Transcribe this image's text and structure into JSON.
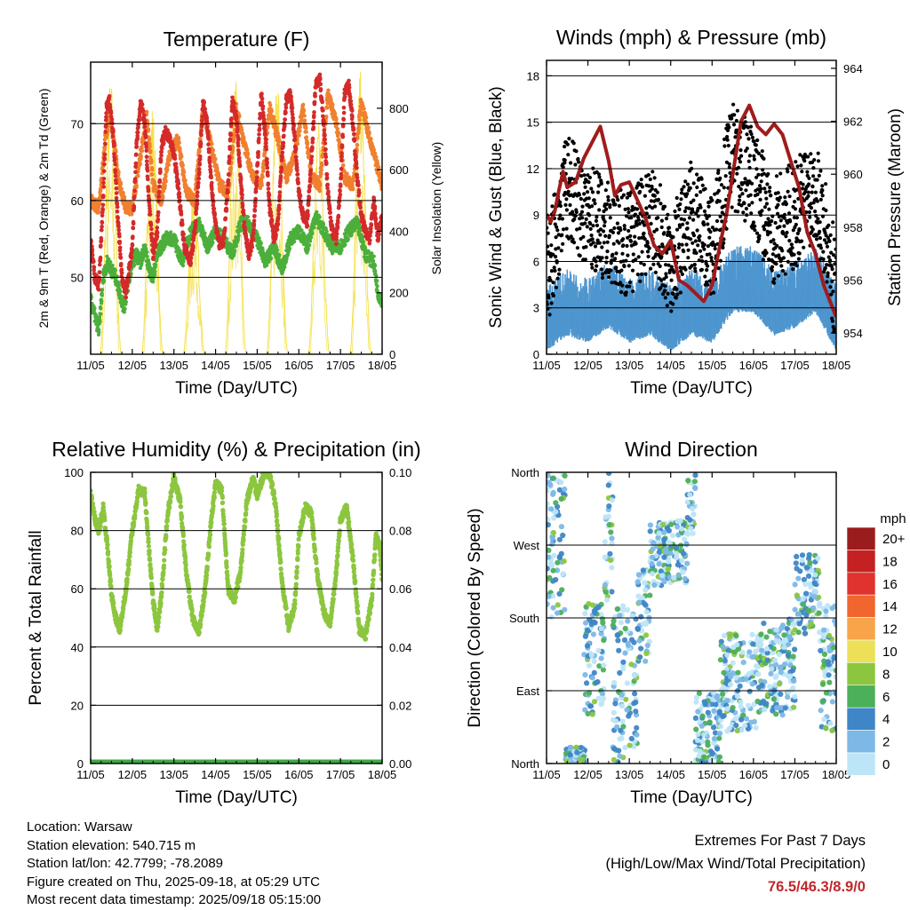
{
  "xticks": [
    "11/05",
    "12/05",
    "13/05",
    "14/05",
    "15/05",
    "16/05",
    "17/05",
    "18/05"
  ],
  "xlabel": "Time (Day/UTC)",
  "panels": {
    "temperature": {
      "title": "Temperature (F)",
      "ylabel_left": "2m & 9m T (Red, Orange) & 2m Td (Green)",
      "ylabel_right": "Solar Insolation (Yellow)",
      "yticks_left": [
        "50",
        "60",
        "70"
      ],
      "yticks_right": [
        "0",
        "200",
        "400",
        "600",
        "800"
      ]
    },
    "winds": {
      "title": "Winds (mph) & Pressure (mb)",
      "ylabel_left": "Sonic Wind & Gust (Blue, Black)",
      "ylabel_right": "Station Pressure (Maroon)",
      "yticks_left": [
        "0",
        "3",
        "6",
        "9",
        "12",
        "15",
        "18"
      ],
      "yticks_right": [
        "954",
        "956",
        "958",
        "960",
        "962",
        "964"
      ]
    },
    "humidity": {
      "title": "Relative Humidity (%) & Precipitation (in)",
      "ylabel_left": "Percent & Total Rainfall",
      "yticks_left": [
        "0",
        "20",
        "40",
        "60",
        "80",
        "100"
      ],
      "yticks_right": [
        "0.00",
        "0.02",
        "0.04",
        "0.06",
        "0.08",
        "0.10"
      ]
    },
    "direction": {
      "title": "Wind Direction",
      "ylabel_left": "Direction (Colored By Speed)",
      "yticks_left": [
        "North",
        "East",
        "South",
        "West",
        "North"
      ],
      "legend_title": "mph",
      "legend_labels": [
        "20+",
        "18",
        "16",
        "14",
        "12",
        "10",
        "8",
        "6",
        "4",
        "2",
        "0"
      ]
    }
  },
  "chart_data": [
    {
      "type": "line",
      "title": "Temperature (F)",
      "xlabel": "Time (Day/UTC)",
      "ylabel": "2m & 9m T (Red, Orange) & 2m Td (Green)",
      "y2label": "Solar Insolation (Yellow)",
      "x_range_days": [
        0,
        7
      ],
      "ylim": [
        40,
        78
      ],
      "y2lim": [
        0,
        950
      ],
      "colors": {
        "t2m": "#d42a2a",
        "t9m": "#f08030",
        "td2m": "#4caf3c",
        "solar": "#f5e04a"
      },
      "series": [
        {
          "key": "t2m",
          "axis": "left",
          "x": [
            0,
            0.1,
            0.2,
            0.3,
            0.38,
            0.45,
            0.55,
            0.65,
            0.75,
            0.85,
            1,
            1.1,
            1.2,
            1.3,
            1.4,
            1.5,
            1.6,
            1.7,
            1.8,
            1.9,
            2,
            2.1,
            2.25,
            2.4,
            2.5,
            2.6,
            2.7,
            2.8,
            2.9,
            3,
            3.1,
            3.2,
            3.3,
            3.4,
            3.5,
            3.6,
            3.7,
            3.8,
            3.9,
            4,
            4.1,
            4.2,
            4.3,
            4.4,
            4.5,
            4.6,
            4.7,
            4.8,
            4.9,
            5,
            5.1,
            5.2,
            5.3,
            5.4,
            5.5,
            5.6,
            5.7,
            5.8,
            5.9,
            6,
            6.1,
            6.2,
            6.3,
            6.4,
            6.5,
            6.6,
            6.7,
            6.8,
            6.9,
            7
          ],
          "y": [
            55,
            50,
            49,
            60,
            72,
            73,
            68,
            58,
            50,
            48,
            54,
            67,
            73,
            70,
            60,
            53,
            56,
            67,
            69,
            68,
            66,
            62,
            54,
            52,
            56,
            63,
            73,
            70,
            62,
            57,
            54,
            55,
            62,
            73,
            71,
            63,
            56,
            53,
            55,
            64,
            74,
            68,
            59,
            55,
            57,
            66,
            73,
            74,
            68,
            61,
            58,
            57,
            65,
            75,
            76,
            70,
            61,
            56,
            55,
            62,
            74,
            75,
            70,
            63,
            58,
            56,
            55,
            60,
            55,
            58
          ]
        },
        {
          "key": "t9m",
          "axis": "left",
          "x": [
            0,
            0.2,
            0.35,
            0.45,
            0.55,
            0.7,
            0.85,
            1,
            1.2,
            1.35,
            1.5,
            1.7,
            1.9,
            2.1,
            2.3,
            2.5,
            2.7,
            2.9,
            3.1,
            3.3,
            3.5,
            3.7,
            3.9,
            4.1,
            4.3,
            4.5,
            4.7,
            4.9,
            5.1,
            5.3,
            5.5,
            5.7,
            5.9,
            6.1,
            6.3,
            6.5,
            6.7,
            6.9,
            7
          ],
          "y": [
            60,
            59,
            68,
            71,
            68,
            62,
            59,
            59,
            66,
            71,
            62,
            60,
            66,
            68,
            61,
            60,
            72,
            67,
            62,
            61,
            72,
            67,
            63,
            62,
            72,
            68,
            63,
            66,
            72,
            63,
            62,
            74,
            70,
            63,
            62,
            73,
            68,
            64,
            62
          ]
        },
        {
          "key": "td2m",
          "axis": "left",
          "x": [
            0,
            0.1,
            0.2,
            0.3,
            0.4,
            0.5,
            0.6,
            0.7,
            0.8,
            0.9,
            1,
            1.1,
            1.2,
            1.3,
            1.4,
            1.5,
            1.6,
            1.8,
            2,
            2.2,
            2.4,
            2.6,
            2.8,
            3,
            3.2,
            3.4,
            3.6,
            3.8,
            4,
            4.2,
            4.4,
            4.6,
            4.8,
            5,
            5.2,
            5.4,
            5.6,
            5.8,
            6,
            6.2,
            6.4,
            6.6,
            6.8,
            6.9,
            7
          ],
          "y": [
            47,
            45,
            43,
            50,
            52,
            51,
            50,
            48,
            46,
            49,
            52,
            53,
            52,
            54,
            51,
            50,
            53,
            55,
            55,
            52,
            56,
            57,
            54,
            56,
            55,
            53,
            57,
            57,
            55,
            52,
            54,
            51,
            55,
            56,
            54,
            58,
            56,
            54,
            54,
            56,
            57,
            53,
            52,
            48,
            47
          ]
        },
        {
          "key": "solar",
          "axis": "right",
          "peaks_x": [
            0.48,
            1.48,
            2.48,
            3.48,
            4.48,
            5.48,
            6.48
          ],
          "peaks_y": [
            900,
            820,
            580,
            900,
            890,
            760,
            920
          ]
        }
      ]
    },
    {
      "type": "line",
      "title": "Winds (mph) & Pressure (mb)",
      "xlabel": "Time (Day/UTC)",
      "ylabel": "Sonic Wind & Gust (Blue, Black)",
      "y2label": "Station Pressure (Maroon)",
      "x_range_days": [
        0,
        7
      ],
      "ylim": [
        0,
        19
      ],
      "y2lim": [
        953.2,
        964.3
      ],
      "colors": {
        "wind": "#4f96cf",
        "gust": "#000000",
        "pressure": "#a01c1c"
      },
      "series": [
        {
          "key": "pressure",
          "axis": "right",
          "x": [
            0,
            0.1,
            0.2,
            0.3,
            0.4,
            0.5,
            0.7,
            0.9,
            1.1,
            1.3,
            1.5,
            1.65,
            1.8,
            2,
            2.2,
            2.4,
            2.6,
            2.8,
            3,
            3.2,
            3.4,
            3.6,
            3.8,
            4,
            4.2,
            4.35,
            4.5,
            4.7,
            4.9,
            5.1,
            5.3,
            5.5,
            5.7,
            5.9,
            6.1,
            6.3,
            6.5,
            6.7,
            6.9,
            7
          ],
          "y": [
            958.5,
            958.2,
            958.6,
            959.4,
            960.1,
            959.5,
            959.7,
            960.6,
            961.2,
            961.8,
            960.5,
            959.2,
            959.6,
            959.7,
            959.0,
            958.3,
            957.3,
            957.0,
            957.5,
            956.0,
            955.8,
            955.5,
            955.2,
            955.8,
            957.4,
            958.5,
            960.0,
            962.0,
            962.6,
            961.8,
            961.5,
            961.9,
            961.5,
            960.5,
            959.5,
            957.8,
            957.0,
            955.8,
            955.0,
            954.6
          ]
        },
        {
          "key": "wind_base",
          "axis": "left",
          "x": [
            0,
            0.5,
            1,
            1.5,
            2,
            2.5,
            3,
            3.5,
            4,
            4.5,
            5,
            5.5,
            6,
            6.5,
            7
          ],
          "y": [
            2.5,
            3.5,
            3,
            4,
            3,
            3.5,
            2.5,
            3.5,
            3,
            5,
            5,
            3.5,
            4,
            5,
            2.5
          ]
        },
        {
          "key": "gust_base",
          "axis": "left",
          "x": [
            0,
            0.5,
            1,
            1.5,
            2,
            2.5,
            3,
            3.5,
            4,
            4.5,
            5,
            5.5,
            6,
            6.5,
            7
          ],
          "y": [
            5,
            11,
            9,
            8,
            7,
            9,
            6,
            9,
            7,
            13,
            11,
            8,
            9,
            11,
            4
          ]
        }
      ]
    },
    {
      "type": "line",
      "title": "Relative Humidity (%) & Precipitation (in)",
      "xlabel": "Time (Day/UTC)",
      "ylabel": "Percent & Total Rainfall",
      "x_range_days": [
        0,
        7
      ],
      "ylim": [
        0,
        100
      ],
      "y2lim": [
        0,
        0.1
      ],
      "colors": {
        "rh": "#8cc63f",
        "precip": "#3ea845"
      },
      "series": [
        {
          "key": "rh",
          "axis": "left",
          "x": [
            0,
            0.1,
            0.2,
            0.3,
            0.4,
            0.5,
            0.6,
            0.7,
            0.85,
            1,
            1.15,
            1.3,
            1.4,
            1.5,
            1.6,
            1.7,
            1.85,
            2,
            2.15,
            2.3,
            2.45,
            2.6,
            2.75,
            2.9,
            3,
            3.15,
            3.3,
            3.45,
            3.6,
            3.75,
            3.9,
            4,
            4.15,
            4.3,
            4.45,
            4.6,
            4.75,
            4.9,
            5,
            5.15,
            5.3,
            5.45,
            5.6,
            5.75,
            5.9,
            6,
            6.15,
            6.3,
            6.45,
            6.6,
            6.75,
            6.85,
            6.95,
            7
          ],
          "y": [
            93,
            84,
            80,
            88,
            75,
            58,
            50,
            46,
            60,
            80,
            94,
            93,
            74,
            56,
            46,
            58,
            86,
            98,
            90,
            65,
            50,
            45,
            60,
            84,
            96,
            94,
            60,
            56,
            66,
            90,
            98,
            92,
            99,
            100,
            88,
            62,
            47,
            54,
            78,
            88,
            86,
            64,
            52,
            48,
            66,
            84,
            88,
            70,
            46,
            44,
            56,
            78,
            74,
            64
          ]
        },
        {
          "key": "precip",
          "axis": "right",
          "x": [
            0,
            7
          ],
          "y": [
            0,
            0
          ]
        }
      ]
    },
    {
      "type": "scatter",
      "title": "Wind Direction",
      "xlabel": "Time (Day/UTC)",
      "ylabel": "Direction (Colored By Speed)",
      "x_range_days": [
        0,
        7
      ],
      "ylim": [
        0,
        360
      ],
      "y_categories": [
        "North",
        "East",
        "South",
        "West",
        "North"
      ],
      "legend_title": "mph",
      "colorbar_labels": [
        "20+",
        "18",
        "16",
        "14",
        "12",
        "10",
        "8",
        "6",
        "4",
        "2",
        "0"
      ],
      "colorbar_colors": [
        "#9b1c1c",
        "#c42222",
        "#e0332e",
        "#f0662e",
        "#f7a44a",
        "#ebe058",
        "#8cc63f",
        "#4caf5a",
        "#3f86c6",
        "#7db8e6",
        "#bde5f8"
      ],
      "clusters": [
        {
          "x": [
            0,
            0.45
          ],
          "dir": [
            180,
            360
          ]
        },
        {
          "x": [
            0.45,
            0.95
          ],
          "dir": [
            0,
            20
          ]
        },
        {
          "x": [
            0.9,
            1.4
          ],
          "dir": [
            60,
            200
          ]
        },
        {
          "x": [
            1.4,
            1.6
          ],
          "dir": [
            200,
            360
          ]
        },
        {
          "x": [
            1.6,
            2.2
          ],
          "dir": [
            0,
            200
          ]
        },
        {
          "x": [
            2.2,
            2.5
          ],
          "dir": [
            120,
            240
          ]
        },
        {
          "x": [
            2.5,
            3.4
          ],
          "dir": [
            220,
            300
          ]
        },
        {
          "x": [
            3.4,
            3.6
          ],
          "dir": [
            280,
            360
          ]
        },
        {
          "x": [
            3.6,
            4.2
          ],
          "dir": [
            0,
            90
          ]
        },
        {
          "x": [
            4.2,
            5.2
          ],
          "dir": [
            40,
            160
          ]
        },
        {
          "x": [
            5.2,
            6.0
          ],
          "dir": [
            60,
            180
          ]
        },
        {
          "x": [
            6.0,
            6.6
          ],
          "dir": [
            160,
            260
          ]
        },
        {
          "x": [
            6.6,
            7.0
          ],
          "dir": [
            40,
            200
          ]
        }
      ]
    }
  ],
  "info": {
    "location": "Location: Warsaw",
    "elevation": "Station elevation: 540.715 m",
    "latlon": "Station lat/lon: 42.7799; -78.2089",
    "created": "Figure created on Thu, 2025-09-18, at 05:29 UTC",
    "recent": "Most recent data timestamp: 2025/09/18 05:15:00"
  },
  "extremes": {
    "title": "Extremes For Past 7 Days",
    "subtitle": "(High/Low/Max Wind/Total Precipitation)",
    "values": "76.5/46.3/8.9/0"
  }
}
